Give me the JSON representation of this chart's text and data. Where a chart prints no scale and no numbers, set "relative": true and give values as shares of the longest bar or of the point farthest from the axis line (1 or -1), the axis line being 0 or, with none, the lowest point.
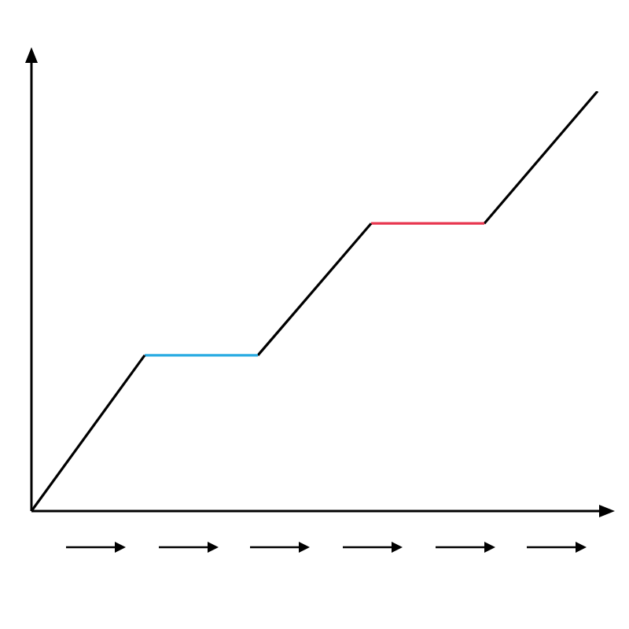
{
  "chart_data": {
    "type": "line",
    "relative": true,
    "categories": [
      null,
      null,
      null,
      null,
      null,
      null
    ],
    "marker": "none",
    "line_style": "solid",
    "series": [
      {
        "color": "#000000",
        "values": [
          0,
          0.371,
          null,
          null,
          null,
          null
        ]
      },
      {
        "color": "#29abe2",
        "values": [
          null,
          0.371,
          0.371,
          null,
          null,
          null
        ]
      },
      {
        "color": "#000000",
        "values": [
          null,
          null,
          0.371,
          0.685,
          null,
          null
        ]
      },
      {
        "color": "#e8364f",
        "values": [
          null,
          null,
          null,
          0.685,
          0.685,
          null
        ]
      },
      {
        "color": "#000000",
        "values": [
          null,
          null,
          null,
          null,
          0.685,
          1
        ]
      }
    ]
  }
}
